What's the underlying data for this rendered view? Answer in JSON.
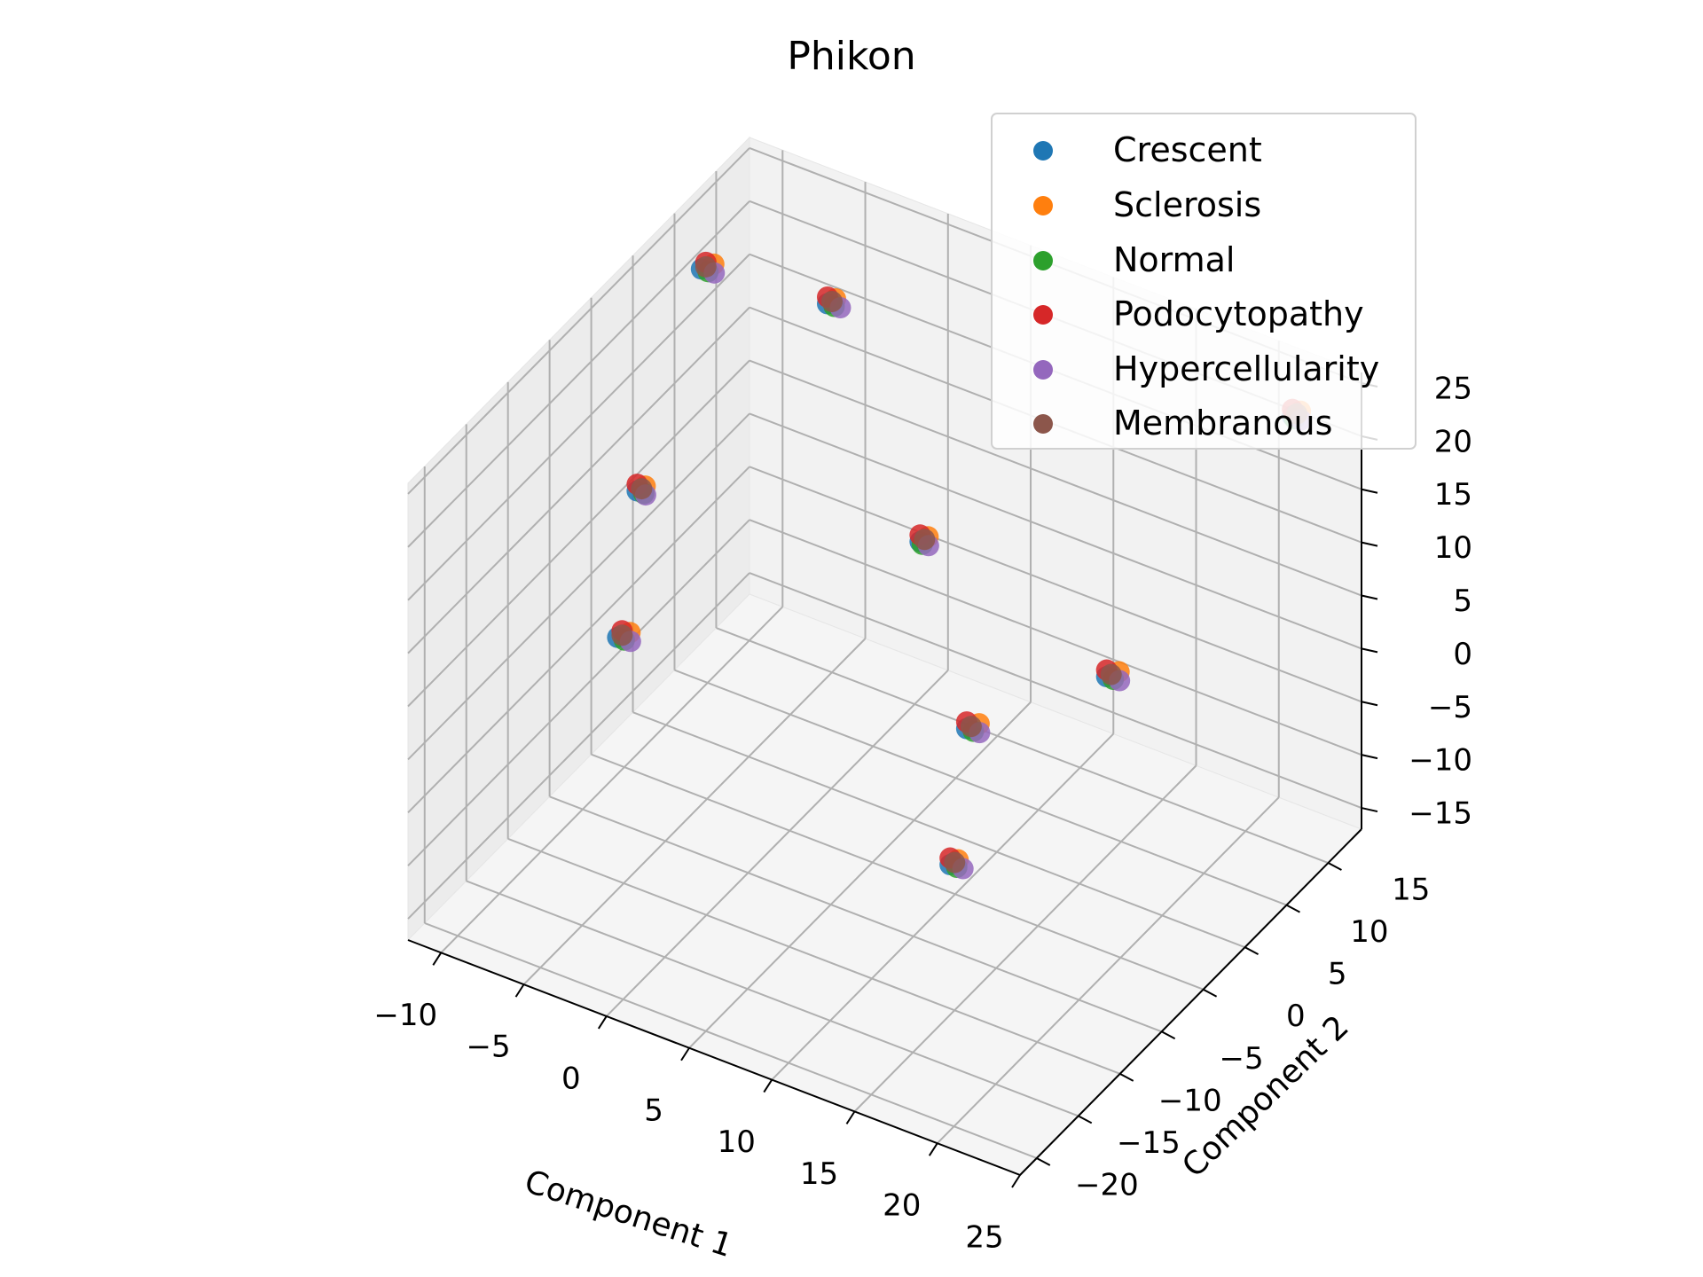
{
  "chart_data": {
    "type": "scatter",
    "projection": "3d",
    "title": "Phikon",
    "xlabel": "Component 1",
    "ylabel": "Component 2",
    "zlabel": "",
    "xlim": [
      -12,
      25
    ],
    "ylim": [
      -22,
      19
    ],
    "zlim": [
      -17,
      26
    ],
    "x_ticks": [
      "−10",
      "−5",
      "0",
      "5",
      "10",
      "15",
      "20",
      "25"
    ],
    "y_ticks": [
      "−20",
      "−15",
      "−10",
      "−5",
      "0",
      "5",
      "10",
      "15"
    ],
    "z_ticks": [
      "−15",
      "−10",
      "−5",
      "0",
      "5",
      "10",
      "15",
      "20",
      "25"
    ],
    "grid": true,
    "legend_position": "top-right",
    "clusters": [
      {
        "x": -10,
        "y": 10,
        "z": 22
      },
      {
        "x": -5,
        "y": 15,
        "z": 18
      },
      {
        "x": 2,
        "y": 12,
        "z": 2
      },
      {
        "x": 8,
        "y": 6,
        "z": -7
      },
      {
        "x": -8,
        "y": -2,
        "z": 12
      },
      {
        "x": -6,
        "y": -8,
        "z": 4
      },
      {
        "x": 15,
        "y": -10,
        "z": -3
      },
      {
        "x": 23,
        "y": 15,
        "z": 24
      },
      {
        "x": 22,
        "y": -5,
        "z": 15
      }
    ],
    "series": [
      {
        "name": "Crescent",
        "color": "#1f77b4"
      },
      {
        "name": "Sclerosis",
        "color": "#ff7f0e"
      },
      {
        "name": "Normal",
        "color": "#2ca02c"
      },
      {
        "name": "Podocytopathy",
        "color": "#d62728"
      },
      {
        "name": "Hypercellularity",
        "color": "#9467bd"
      },
      {
        "name": "Membranous",
        "color": "#8c564b"
      }
    ]
  }
}
